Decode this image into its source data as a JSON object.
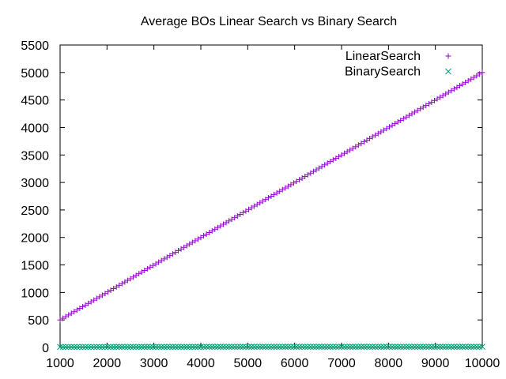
{
  "chart_data": {
    "type": "scatter",
    "title": "Average BOs Linear Search vs Binary Search",
    "xlabel": "",
    "ylabel": "",
    "xlim": [
      1000,
      10000
    ],
    "ylim": [
      0,
      5500
    ],
    "xticks": [
      1000,
      2000,
      3000,
      4000,
      5000,
      6000,
      7000,
      8000,
      9000,
      10000
    ],
    "yticks": [
      0,
      500,
      1000,
      1500,
      2000,
      2500,
      3000,
      3500,
      4000,
      4500,
      5000,
      5500
    ],
    "grid": false,
    "legend_position": "top-right",
    "x_start": 1000,
    "x_end": 10000,
    "x_step": 60,
    "series": [
      {
        "name": "LinearSearch",
        "marker": "+",
        "color": "#9400d3",
        "y_at_x_start": 500,
        "y_at_x_end": 5000,
        "description": "y approximately equals x / 2 at each sampled n"
      },
      {
        "name": "BinarySearch",
        "marker": "x",
        "color": "#009e73",
        "y_at_x_start": 10,
        "y_at_x_end": 13,
        "description": "approximately log2(n), near zero at this scale"
      }
    ]
  }
}
